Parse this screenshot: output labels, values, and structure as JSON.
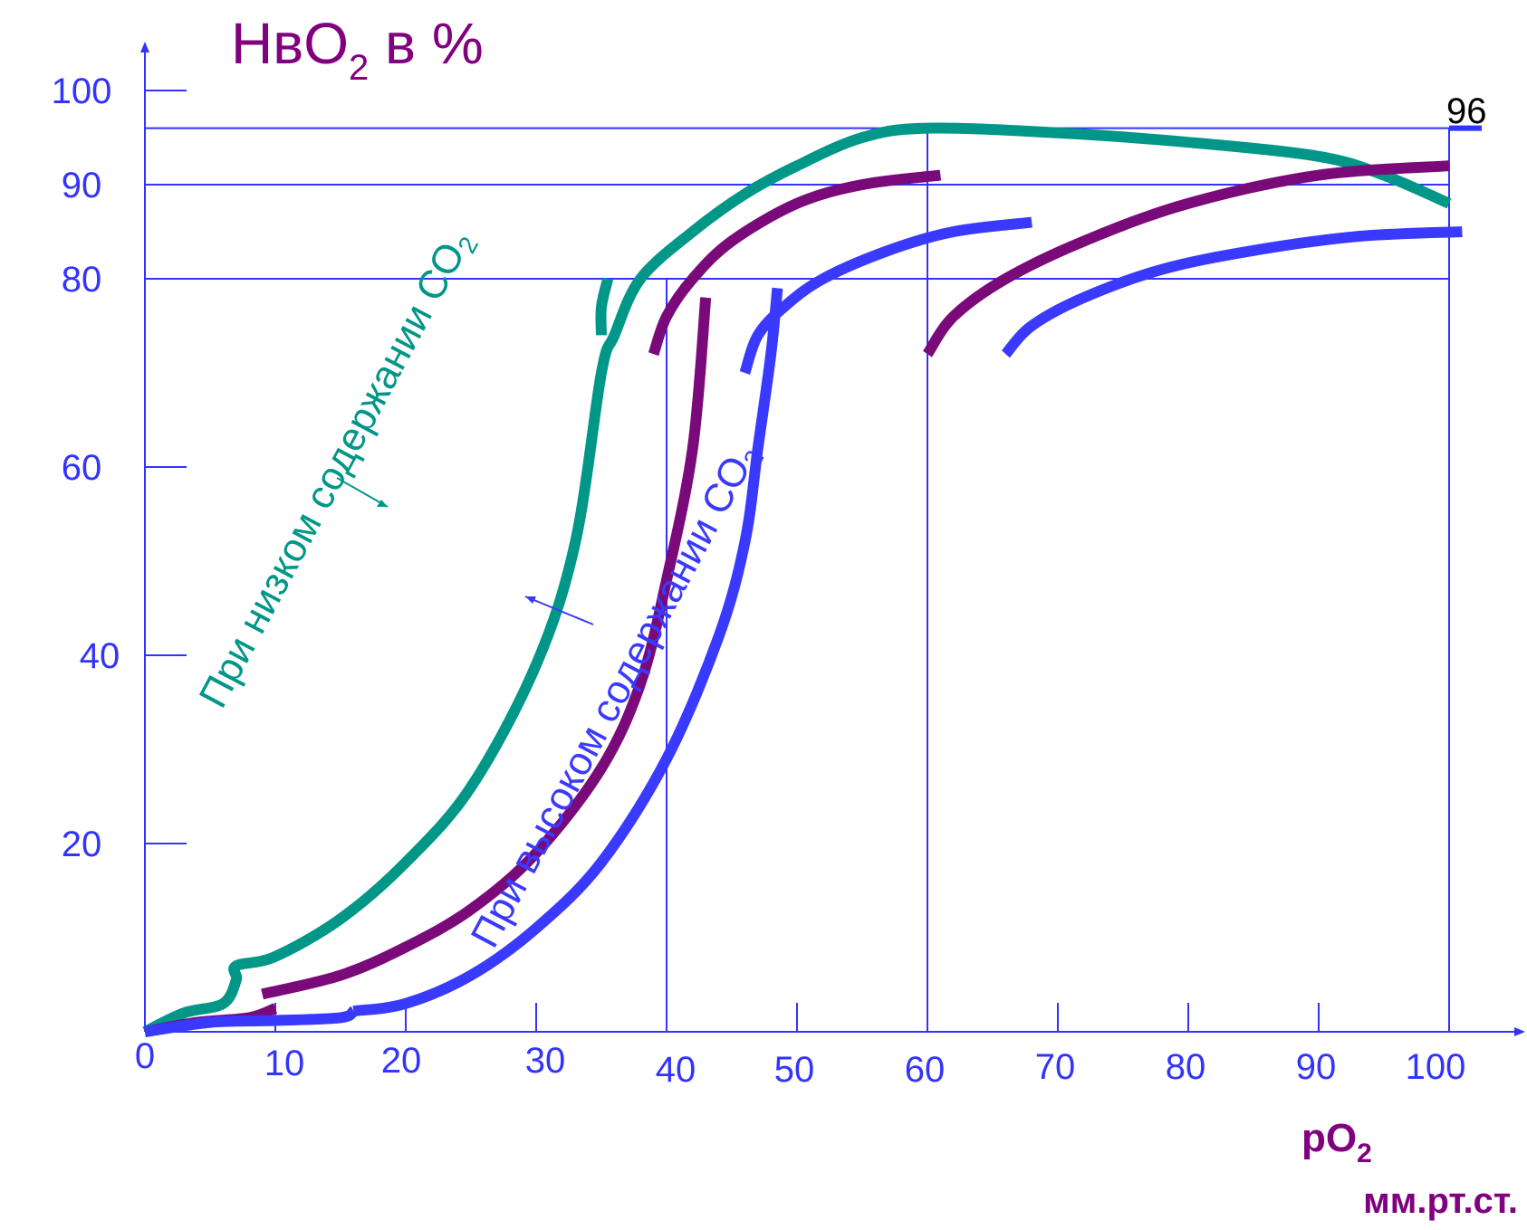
{
  "chart_data": {
    "type": "line",
    "title_main": "HвO",
    "title_sub": "2",
    "title_tail": " в %",
    "xlabel_main": "pO",
    "xlabel_sub": "2",
    "xunit": "мм.рт.ст.",
    "xlim": [
      0,
      100
    ],
    "ylim": [
      0,
      100
    ],
    "x_ticks": [
      0,
      10,
      20,
      30,
      40,
      50,
      60,
      70,
      80,
      90,
      100
    ],
    "y_ticks": [
      20,
      40,
      60,
      80,
      90,
      100
    ],
    "ref_value_label": "96",
    "low_co2_label": "При низком содержании СО",
    "low_co2_sub": "2",
    "high_co2_label": "При высоком содержании СО",
    "high_co2_sub": "2",
    "colors": {
      "axis": "#3333ff",
      "tick_text": "#3333ff",
      "title": "#800080",
      "teal": "#009688",
      "purple": "#7a0a7a",
      "blue": "#3a3aff",
      "ref_text": "#000000"
    },
    "series": [
      {
        "color_key": "teal",
        "points": [
          [
            0,
            0
          ],
          [
            3,
            2
          ],
          [
            6,
            3
          ],
          [
            7,
            5.5
          ],
          [
            7,
            7
          ],
          [
            10,
            8
          ],
          [
            15,
            12
          ],
          [
            20,
            18
          ],
          [
            25,
            26
          ],
          [
            30,
            39
          ],
          [
            33,
            52
          ],
          [
            35,
            70
          ],
          [
            36,
            74
          ],
          [
            38,
            80
          ],
          [
            42,
            85
          ],
          [
            46,
            89
          ],
          [
            50,
            92
          ],
          [
            55,
            95
          ],
          [
            60,
            96
          ],
          [
            70,
            95.5
          ],
          [
            80,
            94.5
          ],
          [
            90,
            93
          ],
          [
            95,
            91
          ],
          [
            100,
            88
          ]
        ]
      },
      {
        "color_key": "teal",
        "points": [
          [
            35,
            74
          ],
          [
            35,
            77
          ],
          [
            35.5,
            80
          ]
        ]
      },
      {
        "color_key": "purple",
        "points": [
          [
            0,
            0
          ],
          [
            4,
            1
          ],
          [
            8,
            1.5
          ],
          [
            10,
            2.5
          ]
        ]
      },
      {
        "color_key": "purple",
        "points": [
          [
            9,
            4
          ],
          [
            15,
            6
          ],
          [
            20,
            9
          ],
          [
            25,
            13
          ],
          [
            30,
            19
          ],
          [
            35,
            28
          ],
          [
            38,
            37
          ],
          [
            40,
            48
          ],
          [
            42,
            62
          ],
          [
            43,
            78
          ]
        ]
      },
      {
        "color_key": "purple",
        "points": [
          [
            39,
            72
          ],
          [
            40,
            76
          ],
          [
            42,
            80
          ],
          [
            45,
            84
          ],
          [
            50,
            88
          ],
          [
            55,
            90
          ],
          [
            61,
            91
          ]
        ]
      },
      {
        "color_key": "purple",
        "points": [
          [
            60,
            72
          ],
          [
            62,
            76
          ],
          [
            66,
            80
          ],
          [
            72,
            84
          ],
          [
            80,
            88
          ],
          [
            90,
            91
          ],
          [
            100,
            92
          ]
        ]
      },
      {
        "color_key": "blue",
        "points": [
          [
            0,
            0
          ],
          [
            5,
            1
          ],
          [
            10,
            1.2
          ],
          [
            15,
            1.5
          ],
          [
            16,
            2.2
          ]
        ]
      },
      {
        "color_key": "blue",
        "points": [
          [
            16,
            2.2
          ],
          [
            20,
            3
          ],
          [
            25,
            6
          ],
          [
            30,
            11
          ],
          [
            35,
            18
          ],
          [
            40,
            29
          ],
          [
            44,
            42
          ],
          [
            46,
            52
          ],
          [
            47,
            62
          ],
          [
            48,
            72
          ],
          [
            48.5,
            79
          ]
        ]
      },
      {
        "color_key": "blue",
        "points": [
          [
            46,
            70
          ],
          [
            47,
            74
          ],
          [
            49,
            77
          ],
          [
            52,
            80
          ],
          [
            57,
            83
          ],
          [
            62,
            85
          ],
          [
            68,
            86
          ]
        ]
      },
      {
        "color_key": "blue",
        "points": [
          [
            66,
            72
          ],
          [
            68,
            75
          ],
          [
            72,
            78
          ],
          [
            78,
            81
          ],
          [
            85,
            83
          ],
          [
            93,
            84.5
          ],
          [
            101,
            85
          ]
        ]
      }
    ]
  }
}
